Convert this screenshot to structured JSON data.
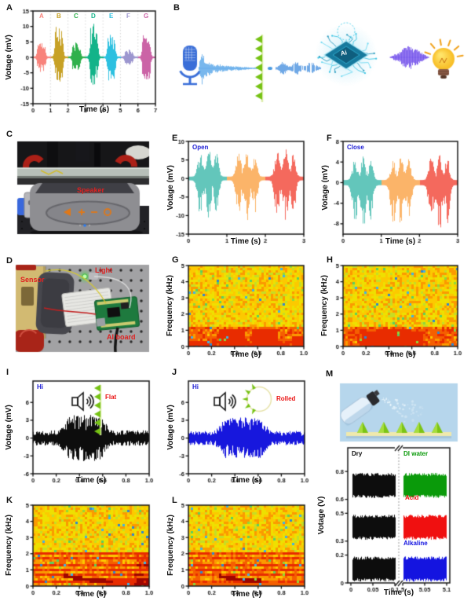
{
  "colors": {
    "note_blue": "#2222d6",
    "note_red": "#ea1414",
    "photo_tag_red": "#e02020",
    "chip_text_white": "#ffffff"
  },
  "panels": {
    "A": {
      "label": "A",
      "ylabel": "Votage (mV)",
      "xlabel": "Time (s)",
      "ylim": [
        -15,
        15
      ],
      "yticks": [
        "15",
        "10",
        "5",
        "0",
        "-5",
        "-10",
        "-15"
      ],
      "xticks": [
        "0",
        "1",
        "2",
        "3",
        "4",
        "5",
        "6",
        "7"
      ],
      "segments": [
        {
          "letter": "A",
          "color": "#f8837b",
          "up": 5.2,
          "down": 5.6
        },
        {
          "letter": "B",
          "color": "#c7a125",
          "up": 11.0,
          "down": 9.6
        },
        {
          "letter": "C",
          "color": "#2fb04c",
          "up": 5.0,
          "down": 5.4
        },
        {
          "letter": "D",
          "color": "#12b389",
          "up": 11.2,
          "down": 10.4
        },
        {
          "letter": "E",
          "color": "#2cc0e0",
          "up": 8.0,
          "down": 9.6
        },
        {
          "letter": "F",
          "color": "#9c96cf",
          "up": 2.6,
          "down": 2.6
        },
        {
          "letter": "G",
          "color": "#cb63a6",
          "up": 8.6,
          "down": 10.0
        }
      ]
    },
    "B": {
      "label": "B",
      "chip_text": "Ai"
    },
    "C": {
      "label": "C",
      "photo_tag": "Speaker"
    },
    "D": {
      "label": "D",
      "tag_sensor": "Sensor",
      "tag_light": "Light",
      "tag_board": "AI board"
    },
    "E": {
      "label": "E",
      "note": "Open",
      "ylabel": "Votage (mV)",
      "xlabel": "Time (s)",
      "ylim": [
        -15,
        10
      ],
      "yticks": [
        "10",
        "5",
        "0",
        "-5",
        "-10",
        "-15"
      ],
      "xticks": [
        "0",
        "1",
        "2",
        "3"
      ],
      "bursts": [
        {
          "color": "#63c6bb",
          "up": 8.0,
          "down": 12.0
        },
        {
          "color": "#fbb469",
          "up": 7.6,
          "down": 11.4
        },
        {
          "color": "#f4695d",
          "up": 8.2,
          "down": 12.6
        }
      ]
    },
    "F": {
      "label": "F",
      "note": "Close",
      "ylabel": "Votage (mV)",
      "xlabel": "Time (s)",
      "ylim": [
        -10,
        8
      ],
      "yticks": [
        "8",
        "4",
        "0",
        "-4",
        "-8"
      ],
      "xticks": [
        "0",
        "1",
        "2",
        "3"
      ],
      "bursts": [
        {
          "color": "#63c6bb",
          "up": 5.0,
          "down": 9.4
        },
        {
          "color": "#fbb469",
          "up": 5.4,
          "down": 9.8
        },
        {
          "color": "#f4695d",
          "up": 5.8,
          "down": 9.6
        }
      ]
    },
    "G": {
      "label": "G",
      "ylabel": "Frequency (kHz)",
      "xlabel": "Time (s)",
      "yticks": [
        "5",
        "4",
        "3",
        "2",
        "1",
        "0"
      ],
      "xticks": [
        "0",
        "0.2",
        "0.4",
        "0.6",
        "0.8",
        "1.0"
      ],
      "pattern": "G",
      "seed": 11
    },
    "H": {
      "label": "H",
      "ylabel": "Frequency (kHz)",
      "xlabel": "Time (s)",
      "yticks": [
        "5",
        "4",
        "3",
        "2",
        "1",
        "0"
      ],
      "xticks": [
        "0",
        "0.2",
        "0.4",
        "0.6",
        "0.8",
        "1.0"
      ],
      "pattern": "H",
      "seed": 29
    },
    "I": {
      "label": "I",
      "note": "Hi",
      "flag": "Flat",
      "wave_color": "#0d0d0d",
      "ylabel": "Votage (mV)",
      "xlabel": "Time (s)",
      "ylim": [
        -6,
        9.6
      ],
      "yticks": [
        "6",
        "3",
        "0",
        "-3",
        "-6"
      ],
      "xticks": [
        "0",
        "0.2",
        "0.4",
        "0.6",
        "0.8",
        "1.0"
      ],
      "noise_mv": 1.3,
      "burst_mv": 3.9,
      "burst_start": 0.27,
      "burst_end": 0.62
    },
    "J": {
      "label": "J",
      "note": "Hi",
      "flag": "Rolled",
      "wave_color": "#1717dd",
      "ylabel": "Votage (mV)",
      "xlabel": "Time (s)",
      "ylim": [
        -6,
        9.6
      ],
      "yticks": [
        "6",
        "3",
        "0",
        "-3",
        "-6"
      ],
      "xticks": [
        "0",
        "0.2",
        "0.4",
        "0.6",
        "0.8",
        "1.0"
      ],
      "noise_mv": 1.2,
      "burst_mv": 3.5,
      "burst_start": 0.27,
      "burst_end": 0.66
    },
    "K": {
      "label": "K",
      "ylabel": "Frequency (kHz)",
      "xlabel": "Time (s)",
      "yticks": [
        "5",
        "4",
        "3",
        "2",
        "1",
        "0"
      ],
      "xticks": [
        "0",
        "0.2",
        "0.4",
        "0.6",
        "0.8",
        "1.0"
      ],
      "pattern": "K",
      "seed": 41
    },
    "L": {
      "label": "L",
      "ylabel": "Frequency (kHz)",
      "xlabel": "Time (s)",
      "yticks": [
        "5",
        "4",
        "3",
        "2",
        "1",
        "0"
      ],
      "xticks": [
        "0",
        "0.2",
        "0.4",
        "0.6",
        "0.8",
        "1.0"
      ],
      "pattern": "L",
      "seed": 57
    },
    "M": {
      "label": "M",
      "plot": {
        "ylabel": "Votage (V)",
        "xlabel": "Time (s)",
        "ylim": [
          0,
          0.97
        ],
        "yticks": [
          "0.8",
          "0.6",
          "0.5",
          "0.3",
          "0.2",
          "0"
        ],
        "xticks_left": [
          "0",
          "0.05",
          "0.1"
        ],
        "xticks_right": [
          "5",
          "5.05",
          "5.1"
        ],
        "amp_v": 0.09,
        "series": [
          {
            "name": "Dry",
            "color": "#0d0d0d",
            "side": "left",
            "centers": [
              0.7,
              0.4,
              0.1
            ]
          },
          {
            "name": "DI water",
            "color": "#0a9a0a",
            "side": "right",
            "centers": [
              0.7
            ]
          },
          {
            "name": "Acid",
            "color": "#f01010",
            "side": "right",
            "centers": [
              0.4
            ]
          },
          {
            "name": "Alkaline",
            "color": "#1414e0",
            "side": "right",
            "centers": [
              0.1
            ]
          }
        ]
      }
    }
  }
}
